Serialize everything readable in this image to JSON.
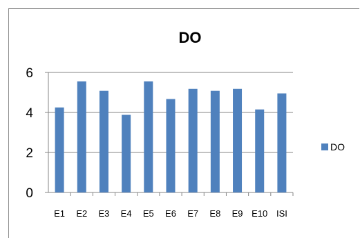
{
  "chart_data": {
    "type": "bar",
    "title": "DO",
    "categories": [
      "E1",
      "E2",
      "E3",
      "E4",
      "E5",
      "E6",
      "E7",
      "E8",
      "E9",
      "E10",
      "ISI"
    ],
    "series": [
      {
        "name": "DO",
        "values": [
          4.25,
          5.55,
          5.08,
          3.88,
          5.55,
          4.67,
          5.18,
          5.08,
          5.18,
          4.15,
          4.95
        ]
      }
    ],
    "xlabel": "",
    "ylabel": "",
    "ylim": [
      0,
      6
    ],
    "yticks": [
      "0",
      "2",
      "4",
      "6"
    ],
    "grid": true,
    "legend": "right",
    "colors": {
      "bar": "#4f81bd",
      "grid": "#868686",
      "axis": "#868686"
    }
  }
}
